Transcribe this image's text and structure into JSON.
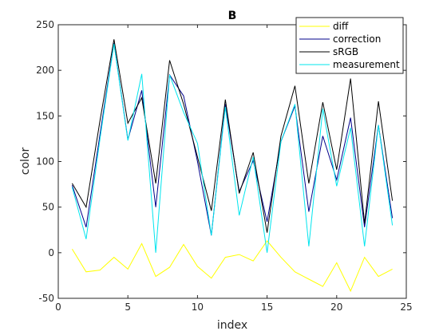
{
  "chart_data": {
    "type": "line",
    "title": "B",
    "xlabel": "index",
    "ylabel": "color",
    "xlim": [
      0,
      25
    ],
    "ylim": [
      -50,
      250
    ],
    "xticks": [
      0,
      5,
      10,
      15,
      20,
      25
    ],
    "yticks": [
      -50,
      0,
      50,
      100,
      150,
      200,
      250
    ],
    "grid": false,
    "legend_position": "top-right",
    "x": [
      1,
      2,
      3,
      4,
      5,
      6,
      7,
      8,
      9,
      10,
      11,
      12,
      13,
      14,
      15,
      16,
      17,
      18,
      19,
      20,
      21,
      22,
      23,
      24
    ],
    "series": [
      {
        "name": "diff",
        "color": "#ffff00",
        "values": [
          4,
          -21,
          -19,
          -5,
          -18,
          10,
          -26,
          -16,
          9,
          -15,
          -28,
          -5,
          -2,
          -9,
          13,
          -5,
          -21,
          -29,
          -37,
          -11,
          -42,
          -5,
          -26,
          -18
        ]
      },
      {
        "name": "correction",
        "color": "#00008b",
        "values": [
          74,
          28,
          130,
          230,
          124,
          178,
          50,
          195,
          172,
          100,
          19,
          163,
          67,
          101,
          34,
          122,
          161,
          45,
          128,
          80,
          148,
          28,
          140,
          38
        ]
      },
      {
        "name": "sRGB",
        "color": "#000000",
        "values": [
          76,
          50,
          145,
          234,
          142,
          170,
          76,
          211,
          163,
          105,
          46,
          168,
          65,
          110,
          22,
          128,
          183,
          76,
          165,
          91,
          191,
          32,
          166,
          57
        ]
      },
      {
        "name": "measurement",
        "color": "#00e5ee",
        "values": [
          72,
          15,
          125,
          229,
          123,
          196,
          0,
          195,
          154,
          120,
          19,
          160,
          41,
          105,
          0,
          122,
          163,
          7,
          158,
          73,
          137,
          7,
          140,
          30
        ]
      }
    ]
  }
}
